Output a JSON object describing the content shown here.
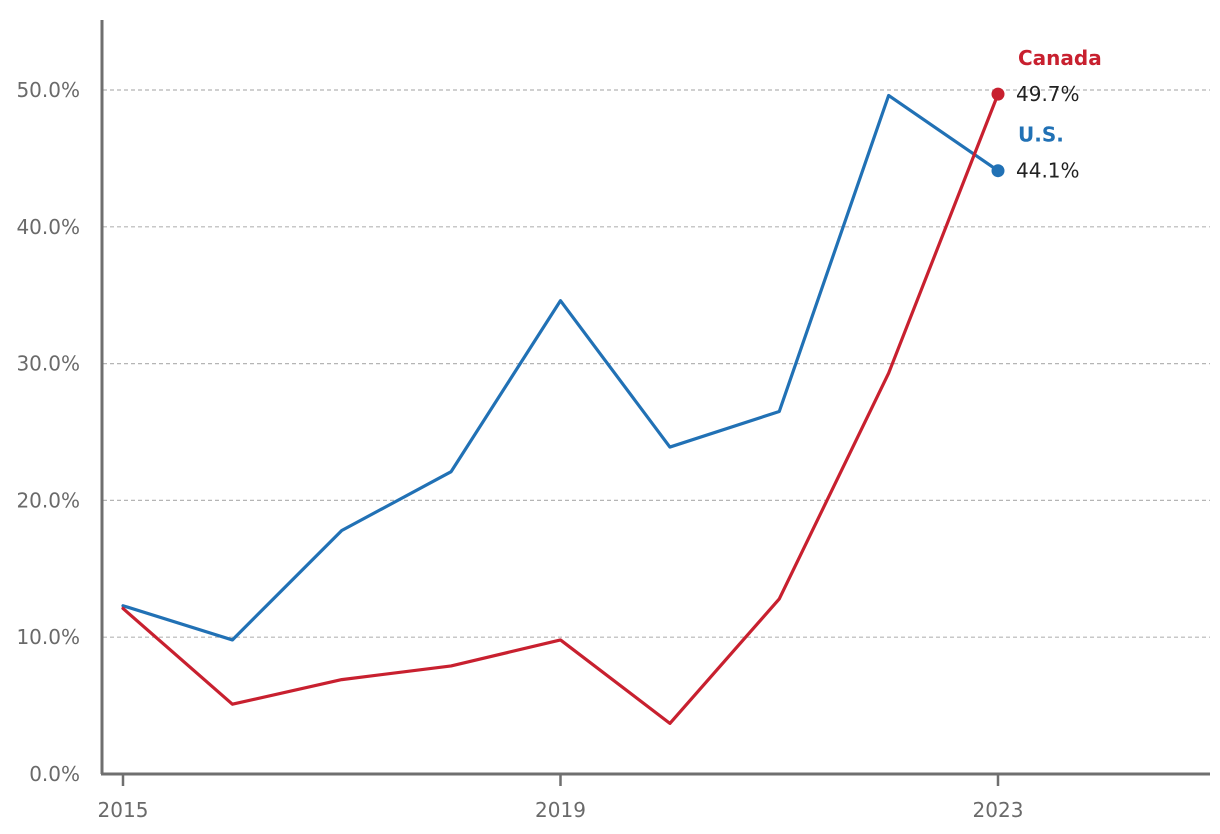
{
  "chart_data": {
    "type": "line",
    "x": [
      2015,
      2016,
      2017,
      2018,
      2019,
      2020,
      2021,
      2022,
      2023
    ],
    "x_tick_labels": [
      "2015",
      "2019",
      "2023"
    ],
    "y_tick_labels": [
      "0.0%",
      "10.0%",
      "20.0%",
      "30.0%",
      "40.0%",
      "50.0%"
    ],
    "ylim": [
      0,
      50
    ],
    "xlim": [
      2015,
      2023
    ],
    "grid": true,
    "series": [
      {
        "name": "U.S.",
        "color": "#2171b5",
        "values": [
          12.3,
          9.8,
          17.8,
          22.1,
          34.6,
          23.9,
          26.5,
          49.6,
          44.1
        ],
        "end_label": "44.1%"
      },
      {
        "name": "Canada",
        "color": "#c8202f",
        "values": [
          12.1,
          5.1,
          6.9,
          7.9,
          9.8,
          3.7,
          12.8,
          29.3,
          49.7
        ],
        "end_label": "49.7%"
      }
    ]
  }
}
